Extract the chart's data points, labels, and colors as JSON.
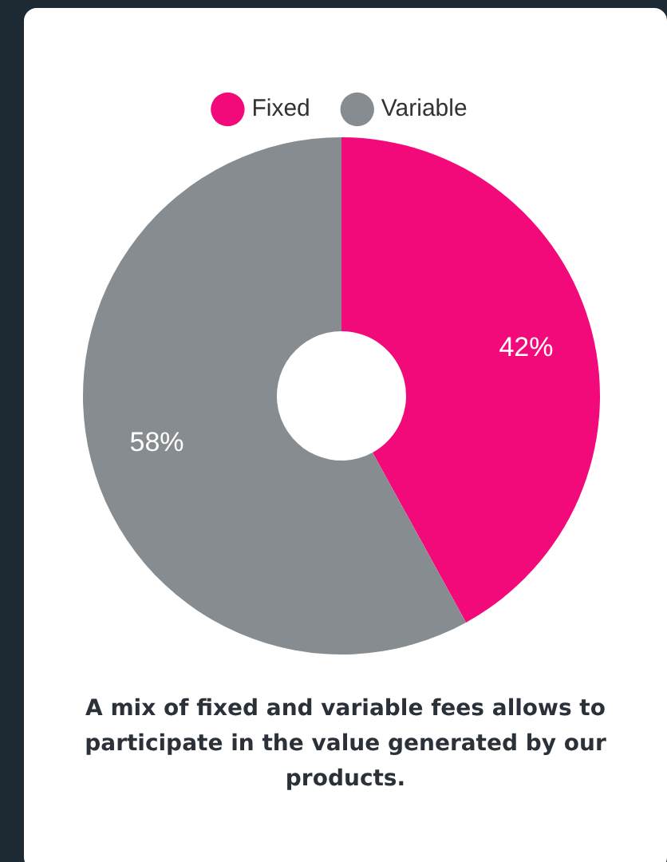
{
  "chart_data": {
    "type": "donut",
    "categories": [
      "Fixed",
      "Variable"
    ],
    "values": [
      42,
      58
    ],
    "colors": [
      "#f20a7b",
      "#868c90"
    ],
    "value_labels": [
      "42%",
      "58%"
    ],
    "legend": "top",
    "annotations": [
      "A mix of fixed and variable fees allows to participate in the value generated by our products."
    ]
  }
}
